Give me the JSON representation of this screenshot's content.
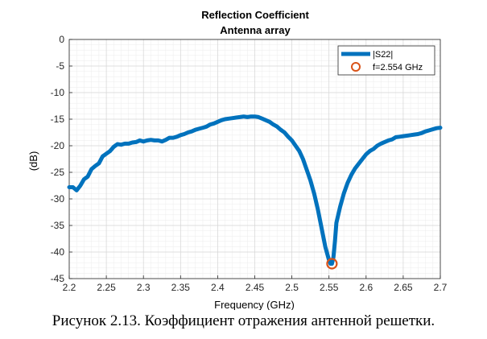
{
  "chart_data": {
    "type": "line",
    "title": "Reflection Coefficient",
    "subtitle": "Antenna array",
    "xlabel": "Frequency (GHz)",
    "ylabel": "(dB)",
    "xlim": [
      2.2,
      2.7
    ],
    "ylim": [
      -45,
      0
    ],
    "x_ticks": [
      "2.2",
      "2.25",
      "2.3",
      "2.35",
      "2.4",
      "2.45",
      "2.5",
      "2.55",
      "2.6",
      "2.65",
      "2.7"
    ],
    "y_ticks": [
      "0",
      "-5",
      "-10",
      "-15",
      "-20",
      "-25",
      "-30",
      "-35",
      "-40",
      "-45"
    ],
    "grid": true,
    "minor_grid": true,
    "legend_position": "top-right",
    "series": [
      {
        "name": "|S22|",
        "color": "#0072BD",
        "x": [
          2.2,
          2.205,
          2.21,
          2.215,
          2.22,
          2.225,
          2.23,
          2.235,
          2.24,
          2.245,
          2.25,
          2.255,
          2.26,
          2.265,
          2.27,
          2.275,
          2.28,
          2.285,
          2.29,
          2.295,
          2.3,
          2.305,
          2.31,
          2.315,
          2.32,
          2.325,
          2.33,
          2.335,
          2.34,
          2.345,
          2.35,
          2.355,
          2.36,
          2.365,
          2.37,
          2.375,
          2.38,
          2.385,
          2.39,
          2.395,
          2.4,
          2.405,
          2.41,
          2.415,
          2.42,
          2.425,
          2.43,
          2.435,
          2.44,
          2.445,
          2.45,
          2.455,
          2.46,
          2.465,
          2.47,
          2.475,
          2.48,
          2.485,
          2.49,
          2.495,
          2.5,
          2.505,
          2.51,
          2.515,
          2.52,
          2.525,
          2.53,
          2.535,
          2.54,
          2.545,
          2.55,
          2.552,
          2.554,
          2.556,
          2.558,
          2.56,
          2.565,
          2.57,
          2.575,
          2.58,
          2.585,
          2.59,
          2.595,
          2.6,
          2.605,
          2.61,
          2.615,
          2.62,
          2.625,
          2.63,
          2.635,
          2.64,
          2.645,
          2.65,
          2.655,
          2.66,
          2.665,
          2.67,
          2.675,
          2.68,
          2.685,
          2.69,
          2.695,
          2.7
        ],
        "y": [
          -27.8,
          -27.8,
          -28.4,
          -27.5,
          -26.3,
          -25.8,
          -24.4,
          -23.8,
          -23.3,
          -22.0,
          -21.5,
          -21.0,
          -20.2,
          -19.7,
          -19.8,
          -19.6,
          -19.6,
          -19.4,
          -19.3,
          -19.0,
          -19.2,
          -19.0,
          -18.9,
          -19.0,
          -19.0,
          -19.2,
          -18.9,
          -18.5,
          -18.5,
          -18.3,
          -18.0,
          -17.8,
          -17.5,
          -17.3,
          -17.0,
          -16.8,
          -16.6,
          -16.4,
          -16.0,
          -15.8,
          -15.5,
          -15.2,
          -15.0,
          -14.9,
          -14.8,
          -14.7,
          -14.6,
          -14.5,
          -14.6,
          -14.5,
          -14.5,
          -14.6,
          -14.9,
          -15.2,
          -15.5,
          -16.0,
          -16.4,
          -17.0,
          -17.5,
          -18.3,
          -19.0,
          -20.0,
          -21.0,
          -22.5,
          -24.5,
          -26.5,
          -29.0,
          -32.0,
          -35.5,
          -39.0,
          -41.5,
          -42.2,
          -42.2,
          -41.0,
          -38.0,
          -34.5,
          -31.5,
          -29.0,
          -27.0,
          -25.5,
          -24.3,
          -23.4,
          -22.5,
          -21.6,
          -21.0,
          -20.6,
          -20.0,
          -19.6,
          -19.3,
          -19.0,
          -18.8,
          -18.4,
          -18.3,
          -18.2,
          -18.1,
          -18.0,
          -17.9,
          -17.8,
          -17.6,
          -17.3,
          -17.1,
          -16.9,
          -16.7,
          -16.6
        ]
      }
    ],
    "markers": [
      {
        "name": "f=2.554 GHz",
        "x": 2.554,
        "y": -42.2,
        "color": "#D95319"
      }
    ]
  },
  "caption": "Рисунок 2.13. Коэффициент отражения антенной решетки."
}
